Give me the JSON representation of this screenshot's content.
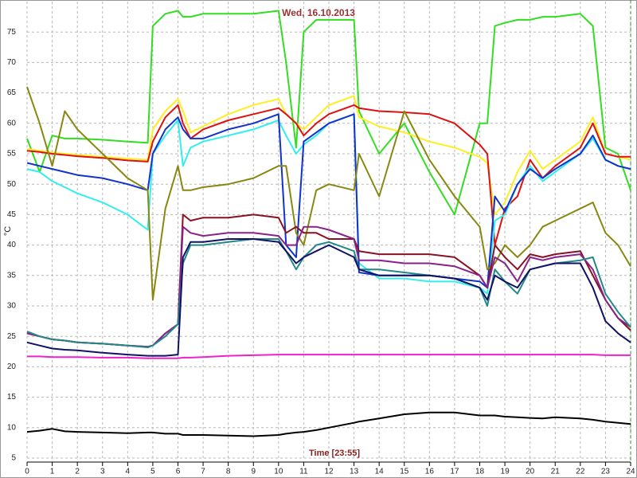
{
  "chart_data": {
    "type": "line",
    "title": "Wed, 16.10.2013",
    "x_label": "Time [23:55]",
    "y_label": "°C",
    "x": [
      0,
      0.5,
      1,
      1.5,
      2,
      3,
      4,
      4.8,
      5,
      5.5,
      6,
      6.2,
      6.5,
      7,
      8,
      9,
      10,
      10.3,
      10.7,
      11,
      11.5,
      12,
      13,
      13.2,
      14,
      15,
      16,
      17,
      18,
      18.3,
      18.6,
      19,
      19.5,
      20,
      20.5,
      21,
      22,
      22.5,
      23,
      23.5,
      24
    ],
    "xlim": [
      0,
      24
    ],
    "xticks": [
      0,
      1,
      2,
      3,
      4,
      5,
      6,
      7,
      8,
      9,
      10,
      11,
      12,
      13,
      14,
      15,
      16,
      17,
      18,
      19,
      20,
      21,
      22,
      23,
      24
    ],
    "ylim": [
      5,
      80
    ],
    "yticks": [
      5,
      10,
      15,
      20,
      25,
      30,
      35,
      40,
      45,
      50,
      55,
      60,
      65,
      70,
      75
    ],
    "grid": true,
    "series": [
      {
        "color": "#33dd22",
        "values": [
          57.5,
          52,
          58,
          57.5,
          57.5,
          57.3,
          57,
          56.8,
          76,
          78,
          78.5,
          77.5,
          77.5,
          78,
          78,
          78,
          78.5,
          70,
          56,
          75,
          77,
          77,
          77,
          62,
          55,
          60,
          52,
          45,
          60,
          60,
          76,
          76.5,
          77,
          77,
          77.5,
          77.5,
          78,
          76,
          56,
          55,
          49
        ]
      },
      {
        "color": "#ffee22",
        "values": [
          55.8,
          55.5,
          55.2,
          55,
          54.8,
          54.5,
          54.2,
          54,
          59,
          62,
          64,
          62,
          58.5,
          59.5,
          61.5,
          63,
          64,
          61.5,
          60,
          59,
          61,
          63,
          64.5,
          61,
          59.5,
          58.5,
          57,
          56,
          54.5,
          53.5,
          45,
          47,
          52,
          55.5,
          52.5,
          54,
          57,
          61,
          55,
          54.5,
          54
        ]
      },
      {
        "color": "#dd1111",
        "values": [
          55.5,
          55.3,
          55,
          54.8,
          54.6,
          54.3,
          53.9,
          53.7,
          57,
          61,
          63,
          60,
          57.5,
          59,
          60.5,
          61.5,
          62.5,
          61.5,
          60,
          58,
          60,
          61.5,
          63,
          62.5,
          62,
          61.8,
          61.5,
          60,
          56.5,
          55,
          40,
          46,
          48,
          54,
          51,
          53,
          56,
          60,
          55,
          54.5,
          54.5
        ]
      },
      {
        "color": "#33eeee",
        "values": [
          52.5,
          52,
          50.5,
          49.5,
          48.5,
          47,
          45,
          42.5,
          55,
          58,
          60.5,
          53,
          56,
          57,
          58,
          59,
          60.5,
          58,
          55,
          56.5,
          58,
          60,
          61.5,
          37,
          34.5,
          34.5,
          34,
          34,
          33,
          32,
          44,
          45,
          50,
          53,
          50.5,
          52,
          55,
          57.5,
          54,
          53,
          52.5
        ]
      },
      {
        "color": "#1133cc",
        "values": [
          53.5,
          53,
          52.5,
          52,
          51.5,
          51,
          50,
          49,
          55,
          59,
          61,
          59,
          57.5,
          57.5,
          59,
          60,
          61.5,
          40,
          38,
          57,
          58.5,
          60,
          61.5,
          35.5,
          35,
          35,
          35,
          34.5,
          34,
          33,
          48,
          45.5,
          50,
          52.5,
          51,
          52.5,
          55,
          58,
          54,
          53,
          52.5
        ]
      },
      {
        "color": "#888811",
        "values": [
          66,
          60,
          53,
          62,
          59,
          55,
          51,
          49,
          31,
          46,
          53,
          49,
          49,
          49.5,
          50,
          51,
          53,
          53,
          42,
          40,
          49,
          50,
          49,
          55,
          48,
          62,
          54,
          48,
          43,
          36,
          37,
          40,
          38,
          40,
          43,
          44,
          46,
          47,
          42,
          40,
          36.5
        ]
      },
      {
        "color": "#881122",
        "values": [
          25.5,
          25,
          24.5,
          24.3,
          24,
          23.8,
          23.5,
          23.3,
          23.5,
          25.5,
          27,
          45,
          44,
          44.5,
          44.5,
          45,
          44.5,
          42,
          43,
          42,
          42,
          41,
          41,
          39,
          38.5,
          38.5,
          38.5,
          38,
          35,
          33,
          40,
          38,
          36,
          38.5,
          38,
          38.5,
          39,
          35,
          31,
          28,
          26
        ]
      },
      {
        "color": "#882288",
        "values": [
          25.5,
          25,
          24.5,
          24.3,
          24,
          23.8,
          23.5,
          23.3,
          23.5,
          25.5,
          27,
          43,
          42,
          41.5,
          42,
          42,
          41.5,
          40,
          40,
          43,
          43,
          42.5,
          41,
          37.5,
          37.5,
          37,
          37,
          36.5,
          35,
          33,
          38,
          37,
          34,
          38,
          37.5,
          38,
          38.5,
          36,
          31,
          28,
          26.5
        ]
      },
      {
        "color": "#228888",
        "values": [
          25.8,
          25,
          24.5,
          24.3,
          24,
          23.8,
          23.5,
          23.2,
          23.5,
          25,
          27,
          37,
          40,
          40,
          40.5,
          41,
          41,
          39,
          36,
          38,
          40,
          40.5,
          39,
          36,
          36,
          35.5,
          35,
          34.5,
          33,
          30,
          36,
          34,
          32,
          36,
          36.5,
          37,
          37.5,
          38,
          32,
          29,
          26.5
        ]
      },
      {
        "color": "#111166",
        "values": [
          24,
          23.5,
          23,
          22.8,
          22.7,
          22.3,
          22,
          21.8,
          21.8,
          21.8,
          22,
          38,
          40.5,
          40.5,
          41,
          41,
          40.5,
          39,
          37,
          38,
          39,
          40,
          38,
          36,
          35,
          35,
          35,
          34.5,
          33,
          31,
          35,
          34,
          33,
          36,
          36.5,
          37,
          37,
          33,
          27.5,
          25.5,
          24
        ]
      },
      {
        "color": "#ee22cc",
        "values": [
          21.7,
          21.7,
          21.6,
          21.6,
          21.6,
          21.5,
          21.5,
          21.4,
          21.4,
          21.4,
          21.4,
          21.5,
          21.5,
          21.6,
          21.8,
          21.9,
          22,
          22,
          22,
          22,
          22,
          22,
          22,
          22,
          22,
          22,
          22,
          22,
          22,
          22,
          22,
          22,
          22,
          22,
          22,
          22,
          22,
          22,
          21.9,
          21.9,
          21.9
        ]
      },
      {
        "color": "#000000",
        "values": [
          9.3,
          9.5,
          9.8,
          9.4,
          9.3,
          9.2,
          9.1,
          9.2,
          9.2,
          9,
          9,
          8.8,
          8.8,
          8.8,
          8.7,
          8.6,
          8.8,
          9,
          9.2,
          9.3,
          9.6,
          10,
          10.8,
          11,
          11.5,
          12.2,
          12.5,
          12.5,
          12,
          12,
          12,
          11.8,
          11.7,
          11.6,
          11.5,
          11.7,
          11.5,
          11.3,
          11,
          10.8,
          10.6
        ]
      }
    ]
  }
}
